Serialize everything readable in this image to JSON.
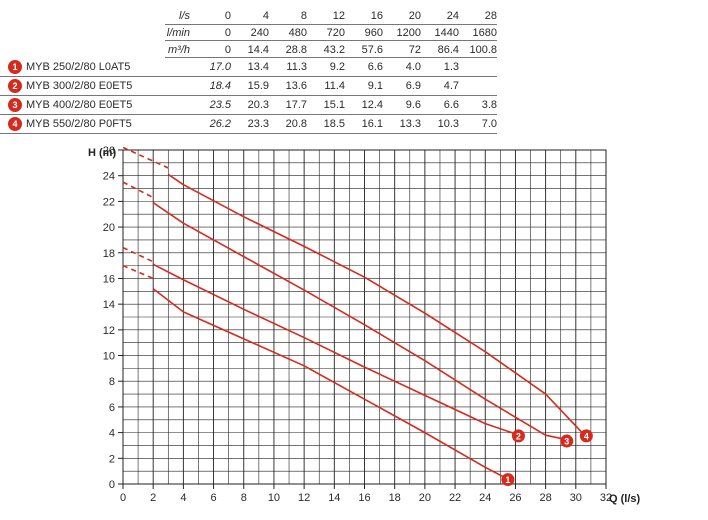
{
  "table": {
    "units": [
      "l/s",
      "l/min",
      "m³/h"
    ],
    "flow": {
      "ls": [
        "0",
        "4",
        "8",
        "12",
        "16",
        "20",
        "24",
        "28"
      ],
      "lmin": [
        "0",
        "240",
        "480",
        "720",
        "960",
        "1200",
        "1440",
        "1680"
      ],
      "m3h": [
        "0",
        "14.4",
        "28.8",
        "43.2",
        "57.6",
        "72",
        "86.4",
        "100.8"
      ]
    },
    "models": [
      {
        "badge": "1",
        "name": "MYB 250/2/80 L0AT5",
        "heads": [
          "17.0",
          "13.4",
          "11.3",
          "9.2",
          "6.6",
          "4.0",
          "1.3",
          ""
        ]
      },
      {
        "badge": "2",
        "name": "MYB 300/2/80 E0ET5",
        "heads": [
          "18.4",
          "15.9",
          "13.6",
          "11.4",
          "9.1",
          "6.9",
          "4.7",
          ""
        ]
      },
      {
        "badge": "3",
        "name": "MYB 400/2/80 E0ET5",
        "heads": [
          "23.5",
          "20.3",
          "17.7",
          "15.1",
          "12.4",
          "9.6",
          "6.6",
          "3.8"
        ]
      },
      {
        "badge": "4",
        "name": "MYB 550/2/80 P0FT5",
        "heads": [
          "26.2",
          "23.3",
          "20.8",
          "18.5",
          "16.1",
          "13.3",
          "10.3",
          "7.0"
        ]
      }
    ]
  },
  "chart_data": {
    "type": "line",
    "ylabel": "H (m)",
    "xlabel": "Q (l/s)",
    "xlim": [
      0,
      32
    ],
    "ylim": [
      0,
      26
    ],
    "xticks": [
      "0",
      "2",
      "4",
      "6",
      "8",
      "10",
      "12",
      "14",
      "16",
      "18",
      "20",
      "22",
      "24",
      "26",
      "28",
      "30",
      "32"
    ],
    "yticks": [
      "0",
      "2",
      "4",
      "6",
      "8",
      "10",
      "12",
      "14",
      "16",
      "18",
      "20",
      "22",
      "24",
      "26"
    ],
    "grid": true,
    "line_color": "#d52b1e",
    "series": [
      {
        "name": "1",
        "dashed": [
          [
            0,
            17.0
          ],
          [
            2,
            16.0
          ]
        ],
        "x": [
          2,
          4,
          8,
          12,
          16,
          20,
          24,
          25.3
        ],
        "y": [
          15.2,
          13.4,
          11.3,
          9.2,
          6.6,
          4.0,
          1.3,
          0.5
        ]
      },
      {
        "name": "2",
        "dashed": [
          [
            0,
            18.4
          ],
          [
            2,
            17.3
          ]
        ],
        "x": [
          2,
          4,
          8,
          12,
          16,
          20,
          24,
          26.0
        ],
        "y": [
          17.1,
          15.9,
          13.6,
          11.4,
          9.1,
          6.9,
          4.7,
          3.9
        ]
      },
      {
        "name": "3",
        "dashed": [
          [
            0,
            23.5
          ],
          [
            2,
            22.3
          ]
        ],
        "x": [
          2,
          4,
          8,
          12,
          16,
          20,
          24,
          28,
          29.2
        ],
        "y": [
          21.9,
          20.3,
          17.7,
          15.1,
          12.4,
          9.6,
          6.6,
          3.8,
          3.5
        ]
      },
      {
        "name": "4",
        "dashed": [
          [
            0,
            26.2
          ],
          [
            3,
            24.6
          ]
        ],
        "x": [
          3,
          4,
          8,
          12,
          16,
          20,
          24,
          28,
          30.5
        ],
        "y": [
          24.1,
          23.3,
          20.8,
          18.5,
          16.1,
          13.3,
          10.3,
          7.0,
          3.9
        ]
      }
    ]
  }
}
